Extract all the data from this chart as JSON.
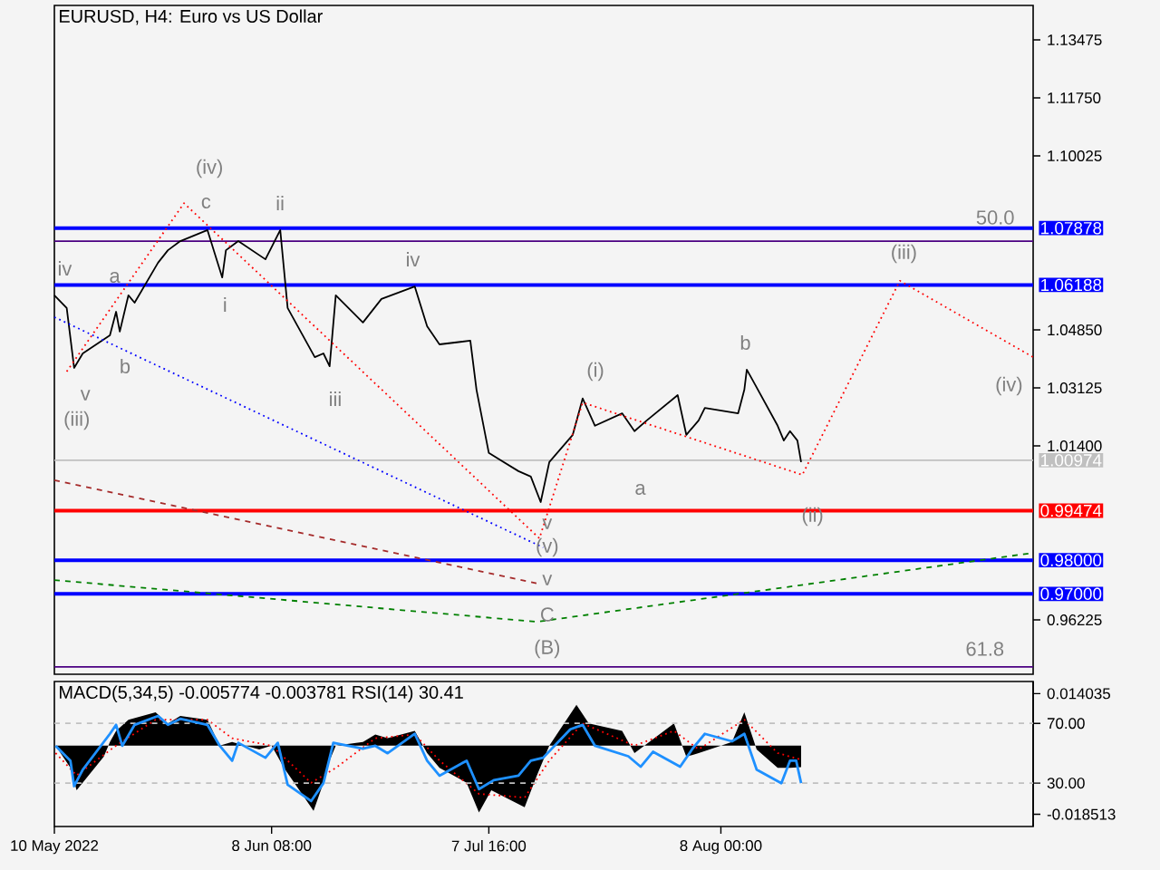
{
  "chart_data": [
    {
      "type": "line",
      "title": "EURUSD, H4:  Euro vs US Dollar",
      "series": [
        {
          "color": "#000000",
          "x": [
            "2022-05-10T00:00",
            "2022-05-11T16:00",
            "2022-05-12T16:00",
            "2022-05-13T20:00",
            "2022-05-17T12:00",
            "2022-05-18T08:00",
            "2022-05-18T20:00",
            "2022-05-20T00:00",
            "2022-05-20T20:00",
            "2022-05-24T00:00",
            "2022-05-25T08:00",
            "2022-05-27T00:00",
            "2022-05-30T16:00",
            "2022-06-01T16:00",
            "2022-06-02T04:00",
            "2022-06-03T20:00",
            "2022-06-07T12:00",
            "2022-06-09T12:00",
            "2022-06-10T12:00",
            "2022-06-14T04:00",
            "2022-06-15T08:00",
            "2022-06-16T04:00",
            "2022-06-17T00:00",
            "2022-06-20T16:00",
            "2022-06-23T04:00",
            "2022-06-27T16:00",
            "2022-06-29T08:00",
            "2022-07-01T00:00",
            "2022-07-05T04:00",
            "2022-07-06T00:00",
            "2022-07-07T16:00",
            "2022-07-11T16:00",
            "2022-07-13T08:00",
            "2022-07-14T16:00",
            "2022-07-15T20:00",
            "2022-07-19T00:00",
            "2022-07-20T08:00",
            "2022-07-22T00:00",
            "2022-07-25T16:00",
            "2022-07-27T08:00",
            "2022-07-29T00:00",
            "2022-08-02T04:00",
            "2022-08-03T08:00",
            "2022-08-05T00:00",
            "2022-08-05T20:00",
            "2022-08-10T08:00",
            "2022-08-11T04:00",
            "2022-08-11T12:00",
            "2022-08-12T08:00",
            "2022-08-15T16:00",
            "2022-08-16T12:00",
            "2022-08-17T08:00",
            "2022-08-18T08:00",
            "2022-08-18T20:00"
          ],
          "values": [
            1.0588,
            1.055,
            1.0372,
            1.0415,
            1.0469,
            1.0539,
            1.048,
            1.0588,
            1.0566,
            1.0685,
            1.0722,
            1.0749,
            1.0782,
            1.0641,
            1.0722,
            1.0749,
            1.0695,
            1.0782,
            1.055,
            1.0404,
            1.0415,
            1.0377,
            1.0588,
            1.0507,
            1.0577,
            1.0614,
            1.0496,
            1.0442,
            1.0453,
            1.0307,
            1.0119,
            1.0065,
            1.0049,
            0.9973,
            1.0092,
            1.0173,
            1.0281,
            1.02,
            1.0237,
            1.0184,
            1.0216,
            1.0291,
            1.0173,
            1.0216,
            1.0253,
            1.0237,
            1.0307,
            1.0367,
            1.0334,
            1.02,
            1.0156,
            1.0184,
            1.0156,
            1.0092
          ]
        },
        {
          "color": "#ff0000",
          "line_style": "dotted",
          "x": [
            "2022-05-11T16:00",
            "2022-05-27T12:00",
            "2022-07-14T12:00",
            "2022-07-20T08:00",
            "2022-08-19T00:00",
            "2022-09-01T04:00",
            "2022-09-19T04:00"
          ],
          "values": [
            1.0361,
            1.0862,
            0.9865,
            1.0269,
            1.0054,
            1.0631,
            1.0404
          ]
        },
        {
          "color": "#0000ff",
          "line_style": "dotted",
          "x": [
            "2022-05-10T00:00",
            "2022-07-15T00:00"
          ],
          "values": [
            1.0523,
            0.9838
          ]
        },
        {
          "color": "#a52a2a",
          "line_style": "dashed",
          "x": [
            "2022-05-10T00:00",
            "2022-07-14T04:00"
          ],
          "values": [
            1.0038,
            0.9731
          ]
        },
        {
          "color": "#008000",
          "line_style": "dashed",
          "x": [
            "2022-05-10T00:00",
            "2022-07-14T04:00",
            "2022-09-19T04:00"
          ],
          "values": [
            0.9741,
            0.9617,
            0.9822
          ]
        }
      ],
      "xlim": [
        "2022-05-10T00:00",
        "2022-09-19T04:00"
      ],
      "ylim": [
        0.9461,
        1.145
      ],
      "yticks": [
        1.13475,
        {
          "value": 1.1175,
          "label": "1.11750"
        },
        1.10025,
        {
          "value": 1.0485,
          "label": "1.04850"
        },
        1.03125,
        {
          "value": 1.014,
          "label": "1.01400"
        },
        0.96225
      ],
      "tick_labels": "y",
      "ref_lines": [
        {
          "axis": "y",
          "value": 1.07878,
          "label": "1.07878",
          "color": "#0000ff"
        },
        {
          "axis": "y",
          "value": 1.0749,
          "color": "#4b0082"
        },
        {
          "axis": "y",
          "value": 1.06188,
          "label": "1.06188",
          "color": "#0000ff"
        },
        {
          "axis": "y",
          "value": 1.00974,
          "label": "1.00974",
          "color": "#c0c0c0"
        },
        {
          "axis": "y",
          "value": 0.99474,
          "label": "0.99474",
          "color": "#ff0000"
        },
        {
          "axis": "y",
          "value": 0.98,
          "label": "0.98000",
          "color": "#0000ff"
        },
        {
          "axis": "y",
          "value": 0.97,
          "label": "0.97000",
          "color": "#0000ff"
        },
        {
          "axis": "y",
          "value": 0.9483,
          "color": "#4b0082"
        }
      ],
      "annotations": [
        "iv",
        "a",
        "b",
        "v",
        "(iii)",
        "(iv)",
        "c",
        "ii",
        "i",
        "iii",
        "iv",
        "(i)",
        "v",
        "a",
        "b",
        "(v)",
        "v",
        "C",
        "(B)",
        "(ii)",
        "(iii)",
        "(iv)",
        "50.0",
        "61.8"
      ]
    },
    {
      "type": "line",
      "title": "MACD(5,34,5) -0.005774 -0.003781 RSI(14) 30.41",
      "series": [
        {
          "type": "area",
          "color": "#000000",
          "x": [
            "2022-05-10T04:00",
            "2022-05-12T04:00",
            "2022-05-13T00:00",
            "2022-05-16T16:00",
            "2022-05-17T12:00",
            "2022-05-18T08:00",
            "2022-05-20T00:00",
            "2022-05-23T16:00",
            "2022-05-25T08:00",
            "2022-05-27T00:00",
            "2022-05-30T16:00",
            "2022-06-01T08:00",
            "2022-06-03T00:00",
            "2022-06-06T16:00",
            "2022-06-08T08:00",
            "2022-06-10T00:00",
            "2022-06-14T00:00",
            "2022-06-15T08:00",
            "2022-06-16T04:00",
            "2022-06-17T00:00",
            "2022-06-20T16:00",
            "2022-06-22T08:00",
            "2022-06-24T00:00",
            "2022-06-27T16:00",
            "2022-06-29T08:00",
            "2022-07-01T00:00",
            "2022-07-04T16:00",
            "2022-07-06T08:00",
            "2022-07-08T00:00",
            "2022-07-12T12:00",
            "2022-07-14T04:00",
            "2022-07-15T20:00",
            "2022-07-19T12:00",
            "2022-07-21T04:00",
            "2022-07-25T16:00",
            "2022-07-27T08:00",
            "2022-08-01T16:00",
            "2022-08-03T08:00",
            "2022-08-05T00:00",
            "2022-08-09T12:00",
            "2022-08-11T04:00",
            "2022-08-12T20:00",
            "2022-08-15T16:00",
            "2022-08-17T08:00",
            "2022-08-18T20:00"
          ],
          "values": [
            0,
            -0.006,
            -0.012,
            -0.003,
            0.001,
            0.004,
            0.007,
            0.009,
            0.006,
            0.008,
            0.007,
            0,
            0.001,
            -0.001,
            0,
            -0.006,
            -0.0176,
            -0.01,
            -0.004,
            0,
            0.001,
            0.003,
            0.002,
            0.004,
            -0.002,
            -0.006,
            -0.01,
            -0.018,
            -0.012,
            -0.0166,
            -0.008,
            0,
            0.011,
            0.006,
            0.004,
            -0.002,
            0.006,
            -0.003,
            -0.002,
            0.001,
            0.009,
            -0.001,
            -0.006,
            -0.006,
            -0.0058
          ]
        },
        {
          "color": "#ff0000",
          "line_style": "dotted",
          "x": [
            "2022-05-10T04:00",
            "2022-05-13T00:00",
            "2022-05-18T08:00",
            "2022-05-23T16:00",
            "2022-05-30T16:00",
            "2022-06-03T00:00",
            "2022-06-08T08:00",
            "2022-06-13T16:00",
            "2022-06-17T00:00",
            "2022-06-22T08:00",
            "2022-06-27T16:00",
            "2022-07-01T00:00",
            "2022-07-06T08:00",
            "2022-07-12T12:00",
            "2022-07-15T20:00",
            "2022-07-20T08:00",
            "2022-07-27T08:00",
            "2022-08-01T16:00",
            "2022-08-05T00:00",
            "2022-08-11T04:00",
            "2022-08-15T16:00",
            "2022-08-18T20:00"
          ],
          "values": [
            -0.002,
            -0.008,
            0,
            0.007,
            0.007,
            0.002,
            0,
            -0.01,
            -0.006,
            0.002,
            0.003,
            -0.004,
            -0.013,
            -0.014,
            -0.004,
            0.006,
            0,
            0.004,
            -0.001,
            0.007,
            -0.002,
            -0.0038
          ]
        },
        {
          "color": "#1e90ff",
          "axis": "y2",
          "x": [
            "2022-05-10T04:00",
            "2022-05-12T04:00",
            "2022-05-12T16:00",
            "2022-05-13T20:00",
            "2022-05-17T12:00",
            "2022-05-18T08:00",
            "2022-05-19T04:00",
            "2022-05-20T20:00",
            "2022-05-24T00:00",
            "2022-05-25T08:00",
            "2022-05-27T00:00",
            "2022-05-30T16:00",
            "2022-06-01T08:00",
            "2022-06-03T00:00",
            "2022-06-03T20:00",
            "2022-06-07T12:00",
            "2022-06-09T04:00",
            "2022-06-10T12:00",
            "2022-06-13T16:00",
            "2022-06-15T08:00",
            "2022-06-16T16:00",
            "2022-06-20T16:00",
            "2022-06-22T08:00",
            "2022-06-24T00:00",
            "2022-06-27T16:00",
            "2022-06-29T08:00",
            "2022-07-01T00:00",
            "2022-07-04T16:00",
            "2022-07-06T08:00",
            "2022-07-08T08:00",
            "2022-07-11T16:00",
            "2022-07-13T08:00",
            "2022-07-15T00:00",
            "2022-07-18T16:00",
            "2022-07-20T08:00",
            "2022-07-22T00:00",
            "2022-07-26T12:00",
            "2022-07-28T04:00",
            "2022-07-29T20:00",
            "2022-08-02T12:00",
            "2022-08-04T04:00",
            "2022-08-05T20:00",
            "2022-08-09T12:00",
            "2022-08-11T04:00",
            "2022-08-12T20:00",
            "2022-08-16T04:00",
            "2022-08-17T08:00",
            "2022-08-18T04:00",
            "2022-08-18T20:00"
          ],
          "values": [
            55,
            45,
            28,
            39,
            63,
            69,
            55,
            69,
            75,
            69,
            73,
            69,
            55,
            45,
            57,
            47,
            57,
            29,
            18,
            30,
            57,
            53,
            55,
            50,
            63,
            45,
            35,
            45,
            26,
            32,
            35,
            45,
            47,
            66,
            69,
            55,
            48,
            41,
            51,
            41,
            53,
            63,
            58,
            63,
            39,
            30,
            45,
            45,
            30
          ]
        }
      ],
      "xlim": [
        "2022-05-10T00:00",
        "2022-09-19T04:00"
      ],
      "xticks": [
        {
          "value": "2022-05-10T00:00",
          "label": "10 May 2022"
        },
        {
          "value": "2022-06-08T08:00",
          "label": "8 Jun 08:00"
        },
        {
          "value": "2022-07-07T16:00",
          "label": "7 Jul 16:00"
        },
        {
          "value": "2022-08-08T00:00",
          "label": "8 Aug 00:00"
        }
      ],
      "ylim": [
        -0.0218,
        0.0173
      ],
      "yticks": [
        0.014035,
        -0.018513
      ],
      "y2lim": [
        1,
        98
      ],
      "y2ticks": [
        {
          "value": 70,
          "label": "70.00"
        },
        {
          "value": 30,
          "label": "30.00"
        }
      ],
      "ref_lines": [
        {
          "axis": "y2",
          "value": 70,
          "color": "#c0c0c0",
          "line_style": "dashed"
        },
        {
          "axis": "y2",
          "value": 30,
          "color": "#c0c0c0",
          "line_style": "dashed"
        }
      ]
    }
  ]
}
